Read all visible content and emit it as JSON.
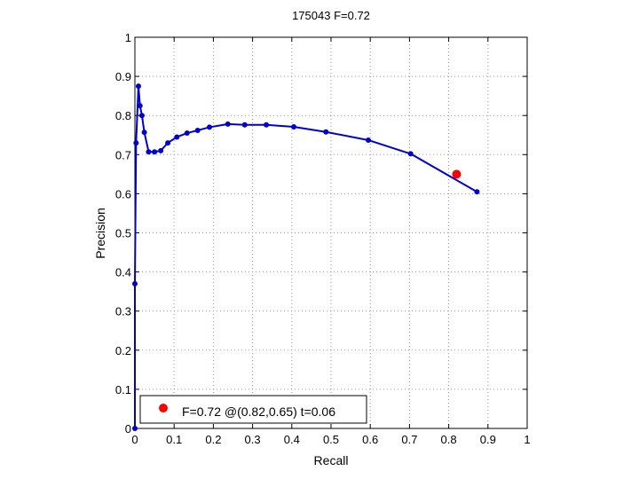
{
  "chart_data": {
    "type": "line",
    "title": "175043 F=0.72",
    "xlabel": "Recall",
    "ylabel": "Precision",
    "xlim": [
      0,
      1
    ],
    "ylim": [
      0,
      1
    ],
    "grid": true,
    "xticks": [
      "0",
      "0.1",
      "0.2",
      "0.3",
      "0.4",
      "0.5",
      "0.6",
      "0.7",
      "0.8",
      "0.9",
      "1"
    ],
    "yticks": [
      "0",
      "0.1",
      "0.2",
      "0.3",
      "0.4",
      "0.5",
      "0.6",
      "0.7",
      "0.8",
      "0.9",
      "1"
    ],
    "series": [
      {
        "color": "#0000cc",
        "points": [
          [
            0.0,
            0.0
          ],
          [
            0.0,
            0.37
          ],
          [
            0.003,
            0.73
          ],
          [
            0.009,
            0.875
          ],
          [
            0.013,
            0.825
          ],
          [
            0.018,
            0.8
          ],
          [
            0.024,
            0.757
          ],
          [
            0.035,
            0.707
          ],
          [
            0.05,
            0.707
          ],
          [
            0.066,
            0.71
          ],
          [
            0.084,
            0.73
          ],
          [
            0.107,
            0.745
          ],
          [
            0.133,
            0.755
          ],
          [
            0.16,
            0.762
          ],
          [
            0.19,
            0.77
          ],
          [
            0.237,
            0.778
          ],
          [
            0.28,
            0.776
          ],
          [
            0.335,
            0.776
          ],
          [
            0.405,
            0.771
          ],
          [
            0.487,
            0.758
          ],
          [
            0.595,
            0.737
          ],
          [
            0.703,
            0.702
          ],
          [
            0.872,
            0.605
          ]
        ]
      }
    ],
    "marker": {
      "x": 0.82,
      "y": 0.65,
      "color": "#ff0000"
    },
    "legend": {
      "text": "F=0.72 @(0.82,0.65) t=0.06",
      "placement": "bottom-left"
    }
  }
}
